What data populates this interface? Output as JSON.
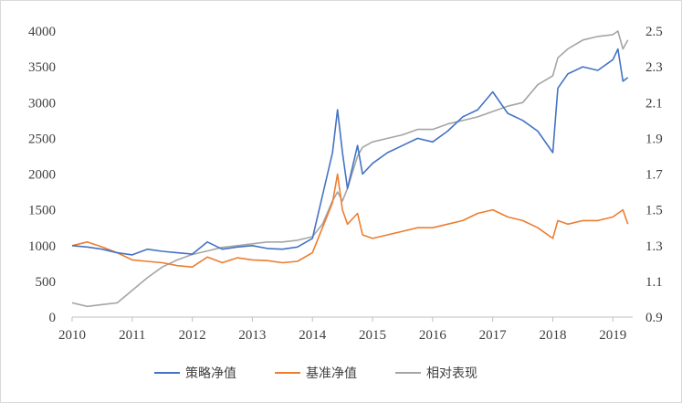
{
  "chart_data": {
    "type": "line",
    "x": [
      "2010-01-01",
      "2010-04-01",
      "2010-07-01",
      "2010-10-01",
      "2011-01-01",
      "2011-04-01",
      "2011-07-01",
      "2011-10-01",
      "2012-01-01",
      "2012-04-01",
      "2012-07-01",
      "2012-10-01",
      "2013-01-01",
      "2013-04-01",
      "2013-07-01",
      "2013-10-01",
      "2014-01-01",
      "2014-03-01",
      "2014-05-01",
      "2014-06-01",
      "2014-07-01",
      "2014-08-01",
      "2014-10-01",
      "2014-11-01",
      "2015-01-01",
      "2015-04-01",
      "2015-07-01",
      "2015-10-01",
      "2016-01-01",
      "2016-04-01",
      "2016-07-01",
      "2016-10-01",
      "2017-01-01",
      "2017-04-01",
      "2017-07-01",
      "2017-10-01",
      "2018-01-01",
      "2018-02-01",
      "2018-04-01",
      "2018-07-01",
      "2018-10-01",
      "2019-01-01",
      "2019-02-01",
      "2019-03-01",
      "2019-04-01"
    ],
    "series": [
      {
        "name": "策略净值",
        "axis": "left",
        "color": "#4472C4",
        "values": [
          1000,
          980,
          950,
          900,
          870,
          950,
          920,
          900,
          880,
          1050,
          950,
          980,
          1000,
          960,
          950,
          980,
          1100,
          1700,
          2300,
          2900,
          2300,
          1800,
          2400,
          2000,
          2150,
          2300,
          2400,
          2500,
          2450,
          2600,
          2800,
          2900,
          3150,
          2850,
          2750,
          2600,
          2300,
          3200,
          3400,
          3500,
          3450,
          3600,
          3750,
          3300,
          3350
        ]
      },
      {
        "name": "基准净值",
        "axis": "left",
        "color": "#ED7D31",
        "values": [
          1000,
          1050,
          980,
          900,
          800,
          780,
          760,
          720,
          700,
          840,
          760,
          830,
          800,
          790,
          760,
          780,
          900,
          1250,
          1600,
          2000,
          1500,
          1300,
          1450,
          1150,
          1100,
          1150,
          1200,
          1250,
          1250,
          1300,
          1350,
          1450,
          1500,
          1400,
          1350,
          1250,
          1100,
          1350,
          1300,
          1350,
          1350,
          1400,
          1450,
          1500,
          1300
        ]
      },
      {
        "name": "相对表现",
        "axis": "right",
        "color": "#A5A5A5",
        "values": [
          0.98,
          0.96,
          0.97,
          0.98,
          1.05,
          1.12,
          1.18,
          1.22,
          1.25,
          1.27,
          1.29,
          1.3,
          1.31,
          1.32,
          1.32,
          1.33,
          1.35,
          1.42,
          1.55,
          1.6,
          1.55,
          1.62,
          1.8,
          1.85,
          1.88,
          1.9,
          1.92,
          1.95,
          1.95,
          1.98,
          2.0,
          2.02,
          2.05,
          2.08,
          2.1,
          2.2,
          2.25,
          2.35,
          2.4,
          2.45,
          2.47,
          2.48,
          2.5,
          2.4,
          2.45
        ]
      }
    ],
    "yleft": {
      "ylim": [
        0,
        4000
      ],
      "ticks": [
        "0",
        "500",
        "1000",
        "1500",
        "2000",
        "2500",
        "3000",
        "3500",
        "4000"
      ]
    },
    "yright": {
      "ylim": [
        0.9,
        2.5
      ],
      "ticks": [
        "0.9",
        "1.1",
        "1.3",
        "1.5",
        "1.7",
        "1.9",
        "2.1",
        "2.3",
        "2.5"
      ]
    },
    "xticks": [
      "2010",
      "2011",
      "2012",
      "2013",
      "2014",
      "2015",
      "2016",
      "2017",
      "2018",
      "2019"
    ],
    "grid": false,
    "legend_position": "bottom"
  }
}
